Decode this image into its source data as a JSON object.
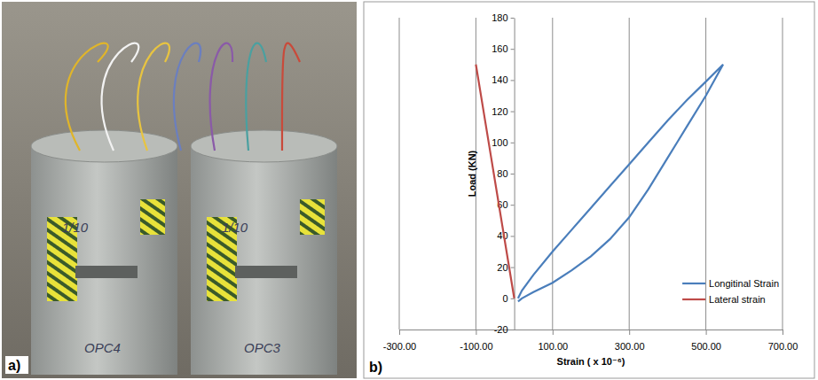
{
  "photo": {
    "label": "a)",
    "annotations": [
      "1/10",
      "OPC4",
      "1/10",
      "OPC3"
    ]
  },
  "chart_data": {
    "type": "line",
    "panel_label": "b)",
    "x_label": "Strain ( x 10⁻⁶)",
    "y_label": "Load (KN)",
    "xlim": [
      -300,
      700
    ],
    "ylim": [
      -20,
      180
    ],
    "xticks": [
      {
        "value": -300,
        "label": "-300.00"
      },
      {
        "value": -100,
        "label": "-100.00"
      },
      {
        "value": 100,
        "label": "100.00"
      },
      {
        "value": 300,
        "label": "300.00"
      },
      {
        "value": 500,
        "label": "500.00"
      },
      {
        "value": 700,
        "label": "700.00"
      }
    ],
    "yticks": [
      -20,
      0,
      20,
      40,
      60,
      80,
      100,
      120,
      140,
      160,
      180
    ],
    "grid": "x",
    "legend": "lower right",
    "series": [
      {
        "name": "Longitinal Strain",
        "color": "#4a7ebb",
        "line_style": "solid",
        "x": [
          10,
          20,
          50,
          100,
          150,
          200,
          250,
          300,
          350,
          400,
          450,
          500,
          545,
          500,
          450,
          400,
          350,
          300,
          250,
          200,
          150,
          100,
          50,
          20,
          10
        ],
        "values": [
          0,
          5,
          15,
          30,
          44,
          58,
          72,
          86,
          100,
          114,
          127,
          139,
          150,
          130,
          110,
          90,
          70,
          52,
          38,
          27,
          18,
          10,
          4,
          0,
          -2
        ]
      },
      {
        "name": "Lateral strain",
        "color": "#be4b48",
        "line_style": "solid",
        "x": [
          0,
          -20,
          -40,
          -60,
          -80,
          -100
        ],
        "values": [
          0,
          30,
          60,
          90,
          120,
          150
        ]
      }
    ]
  }
}
